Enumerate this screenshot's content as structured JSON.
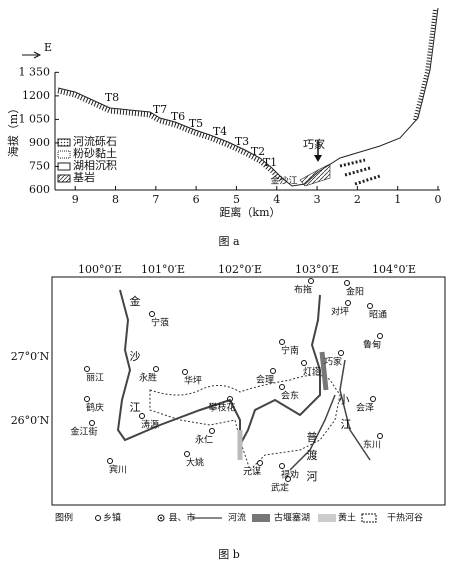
{
  "figure_a": {
    "caption": "图 a",
    "direction": "E",
    "ylabel": "海拔（m）",
    "xlabel": "距离（km）",
    "xlim": [
      9.6,
      0
    ],
    "xticks": [
      9,
      8,
      7,
      6,
      5,
      4,
      3,
      2,
      1,
      0
    ],
    "ylim": [
      600,
      1760
    ],
    "yticks": [
      {
        "value": 1350,
        "label": "1 350"
      },
      1200,
      {
        "value": 1050,
        "label": "1 050"
      },
      900,
      750,
      600
    ],
    "terraces": [
      "T8",
      "T7",
      "T6",
      "T5",
      "T4",
      "T3",
      "T2",
      "T1"
    ],
    "legend": [
      "河流砾石",
      "粉砂黏土",
      "湖相沉积",
      "基岩"
    ],
    "annotations": [
      "巧家",
      "金沙江"
    ]
  },
  "figure_b": {
    "caption": "图 b",
    "lon_labels": [
      "100°0′E",
      "101°0′E",
      "102°0′E",
      "103°0′E",
      "104°0′E"
    ],
    "lat_labels": [
      "27°0′N",
      "26°0′N"
    ],
    "places": [
      "宁蒗",
      "布拖",
      "金阳",
      "对坪",
      "昭通",
      "鲁甸",
      "宁南",
      "巧家",
      "灯塔",
      "会理",
      "会东",
      "会泽",
      "丽江",
      "永胜",
      "华坪",
      "攀枝花",
      "鹤庆",
      "金江街",
      "涛源",
      "永仁",
      "大姚",
      "元谋",
      "禄劝",
      "武定",
      "宾川",
      "东川"
    ],
    "river_labels": [
      "金",
      "沙",
      "江",
      "小",
      "江",
      "普",
      "渡",
      "河"
    ],
    "legend": [
      "图例",
      "乡镇",
      "县、市",
      "河流",
      "古堰塞湖",
      "黄土",
      "干热河谷"
    ]
  }
}
